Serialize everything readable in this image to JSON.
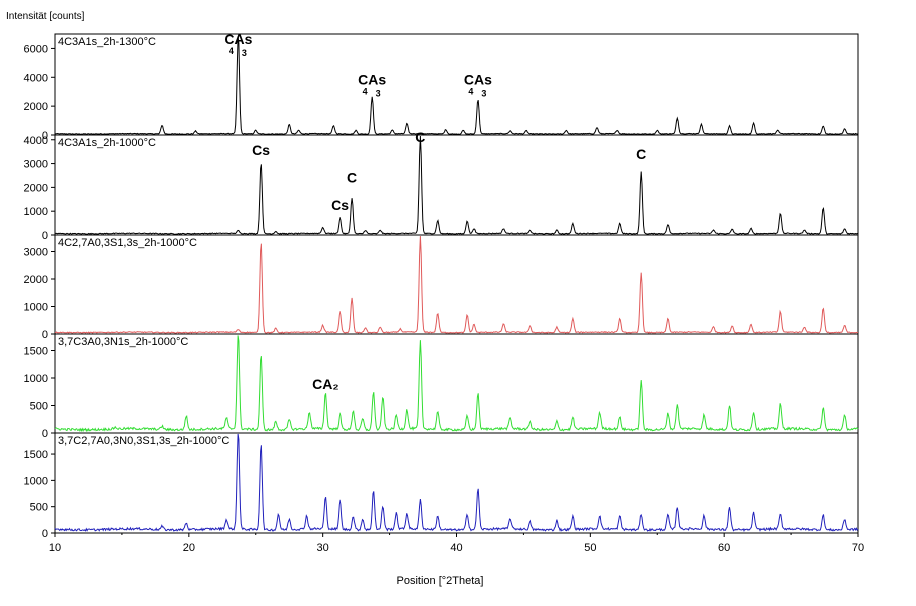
{
  "chart_data": {
    "type": "line",
    "ylabel": "Intensität [counts]",
    "xlabel": "Position [°2Theta]",
    "xlim": [
      10,
      70
    ],
    "xticks": [
      10,
      20,
      30,
      40,
      50,
      60,
      70
    ],
    "grid": false,
    "panels": [
      {
        "name": "4C3A1s_2h-1300°C",
        "color": "#000000",
        "ylim": [
          0,
          7000
        ],
        "yticks": [
          0,
          2000,
          4000,
          6000
        ],
        "baseline": 80,
        "peaks": [
          [
            18.0,
            600
          ],
          [
            20.5,
            200
          ],
          [
            23.7,
            6900
          ],
          [
            25.0,
            250
          ],
          [
            27.5,
            650
          ],
          [
            28.2,
            250
          ],
          [
            30.8,
            550
          ],
          [
            32.5,
            250
          ],
          [
            33.7,
            2600
          ],
          [
            35.2,
            250
          ],
          [
            36.3,
            700
          ],
          [
            39.2,
            300
          ],
          [
            40.5,
            250
          ],
          [
            41.6,
            2400
          ],
          [
            44.0,
            200
          ],
          [
            45.2,
            220
          ],
          [
            48.2,
            250
          ],
          [
            50.5,
            420
          ],
          [
            52.0,
            250
          ],
          [
            55.0,
            250
          ],
          [
            56.5,
            1100
          ],
          [
            58.3,
            650
          ],
          [
            60.4,
            550
          ],
          [
            62.2,
            750
          ],
          [
            64.0,
            220
          ],
          [
            67.4,
            550
          ],
          [
            69.0,
            350
          ]
        ],
        "annotations": [
          {
            "main": "CAs",
            "sub1": "4",
            "sub2": "3",
            "x": 23.7,
            "y": 6300
          },
          {
            "main": "CAs",
            "sub1": "4",
            "sub2": "3",
            "x": 33.7,
            "y": 3500
          },
          {
            "main": "CAs",
            "sub1": "4",
            "sub2": "3",
            "x": 41.6,
            "y": 3500
          }
        ]
      },
      {
        "name": "4C3A1s_2h-1000°C",
        "color": "#000000",
        "ylim": [
          0,
          4200
        ],
        "yticks": [
          0,
          1000,
          2000,
          3000,
          4000
        ],
        "baseline": 60,
        "peaks": [
          [
            23.7,
            120
          ],
          [
            25.4,
            3000
          ],
          [
            26.5,
            100
          ],
          [
            30.0,
            250
          ],
          [
            31.3,
            700
          ],
          [
            32.2,
            1500
          ],
          [
            33.2,
            150
          ],
          [
            34.3,
            150
          ],
          [
            37.3,
            4100
          ],
          [
            38.6,
            550
          ],
          [
            40.8,
            550
          ],
          [
            41.3,
            220
          ],
          [
            43.5,
            200
          ],
          [
            45.5,
            150
          ],
          [
            47.5,
            150
          ],
          [
            48.7,
            420
          ],
          [
            52.2,
            420
          ],
          [
            53.8,
            2600
          ],
          [
            55.8,
            380
          ],
          [
            59.2,
            150
          ],
          [
            60.6,
            200
          ],
          [
            62.0,
            220
          ],
          [
            64.2,
            850
          ],
          [
            66.0,
            150
          ],
          [
            67.4,
            1100
          ],
          [
            69.0,
            200
          ]
        ],
        "annotations": [
          {
            "main": "Cs",
            "x": 25.4,
            "y": 3350
          },
          {
            "main": "Cs",
            "x": 31.3,
            "y": 1050
          },
          {
            "main": "C",
            "x": 32.2,
            "y": 2200
          },
          {
            "main": "C",
            "x": 37.3,
            "y": 3900
          },
          {
            "main": "C",
            "x": 53.8,
            "y": 3200
          }
        ]
      },
      {
        "name": "4C2,7A0,3S1,3s_2h-1000°C",
        "color": "#e05a5a",
        "ylim": [
          0,
          3600
        ],
        "yticks": [
          0,
          1000,
          2000,
          3000
        ],
        "baseline": 60,
        "peaks": [
          [
            23.7,
            100
          ],
          [
            25.4,
            3300
          ],
          [
            26.5,
            150
          ],
          [
            30.0,
            250
          ],
          [
            31.3,
            780
          ],
          [
            32.2,
            1250
          ],
          [
            33.2,
            180
          ],
          [
            34.3,
            200
          ],
          [
            35.8,
            120
          ],
          [
            37.3,
            3500
          ],
          [
            38.6,
            700
          ],
          [
            40.8,
            650
          ],
          [
            41.3,
            300
          ],
          [
            43.5,
            300
          ],
          [
            45.5,
            250
          ],
          [
            47.5,
            200
          ],
          [
            48.7,
            500
          ],
          [
            52.2,
            500
          ],
          [
            53.8,
            2200
          ],
          [
            55.8,
            500
          ],
          [
            59.2,
            200
          ],
          [
            60.6,
            250
          ],
          [
            62.0,
            300
          ],
          [
            64.2,
            750
          ],
          [
            66.0,
            200
          ],
          [
            67.4,
            900
          ],
          [
            69.0,
            250
          ]
        ],
        "annotations": []
      },
      {
        "name": "3,7C3A0,3N1s_2h-1000°C",
        "color": "#33dd33",
        "ylim": [
          0,
          1800
        ],
        "yticks": [
          0,
          500,
          1000,
          1500
        ],
        "baseline": 70,
        "peaks": [
          [
            14.5,
            30
          ],
          [
            18.0,
            60
          ],
          [
            19.8,
            250
          ],
          [
            22.8,
            200
          ],
          [
            23.7,
            1750
          ],
          [
            25.4,
            1380
          ],
          [
            26.5,
            150
          ],
          [
            27.5,
            180
          ],
          [
            29.0,
            300
          ],
          [
            30.2,
            650
          ],
          [
            31.3,
            280
          ],
          [
            32.3,
            350
          ],
          [
            33.0,
            200
          ],
          [
            33.8,
            700
          ],
          [
            34.5,
            600
          ],
          [
            35.5,
            250
          ],
          [
            36.3,
            350
          ],
          [
            37.3,
            1600
          ],
          [
            38.6,
            320
          ],
          [
            40.8,
            250
          ],
          [
            41.6,
            650
          ],
          [
            44.0,
            200
          ],
          [
            45.5,
            150
          ],
          [
            47.5,
            150
          ],
          [
            48.7,
            220
          ],
          [
            50.7,
            300
          ],
          [
            52.2,
            220
          ],
          [
            53.8,
            900
          ],
          [
            55.8,
            300
          ],
          [
            56.5,
            450
          ],
          [
            58.5,
            250
          ],
          [
            60.4,
            450
          ],
          [
            62.2,
            320
          ],
          [
            64.2,
            450
          ],
          [
            67.4,
            400
          ],
          [
            69.0,
            250
          ]
        ],
        "annotations": [
          {
            "main": "CA₂",
            "x": 30.2,
            "y": 800
          }
        ]
      },
      {
        "name": "3,7C2,7A0,3N0,3S1,3s_2h-1000°C",
        "color": "#2020bb",
        "ylim": [
          0,
          1900
        ],
        "yticks": [
          0,
          500,
          1000,
          1500
        ],
        "baseline": 70,
        "peaks": [
          [
            18.0,
            60
          ],
          [
            19.8,
            130
          ],
          [
            22.8,
            180
          ],
          [
            23.7,
            1900
          ],
          [
            25.4,
            1650
          ],
          [
            26.7,
            300
          ],
          [
            27.5,
            200
          ],
          [
            28.8,
            250
          ],
          [
            30.2,
            600
          ],
          [
            31.3,
            580
          ],
          [
            32.3,
            250
          ],
          [
            33.0,
            200
          ],
          [
            33.8,
            750
          ],
          [
            34.5,
            450
          ],
          [
            35.5,
            300
          ],
          [
            36.3,
            300
          ],
          [
            37.3,
            550
          ],
          [
            38.6,
            250
          ],
          [
            40.8,
            300
          ],
          [
            41.6,
            780
          ],
          [
            44.0,
            200
          ],
          [
            45.5,
            150
          ],
          [
            47.5,
            180
          ],
          [
            48.7,
            250
          ],
          [
            50.7,
            250
          ],
          [
            52.2,
            250
          ],
          [
            53.8,
            300
          ],
          [
            55.8,
            280
          ],
          [
            56.5,
            420
          ],
          [
            58.5,
            250
          ],
          [
            60.4,
            430
          ],
          [
            62.2,
            320
          ],
          [
            64.2,
            280
          ],
          [
            67.4,
            280
          ],
          [
            69.0,
            200
          ]
        ],
        "annotations": []
      }
    ]
  }
}
